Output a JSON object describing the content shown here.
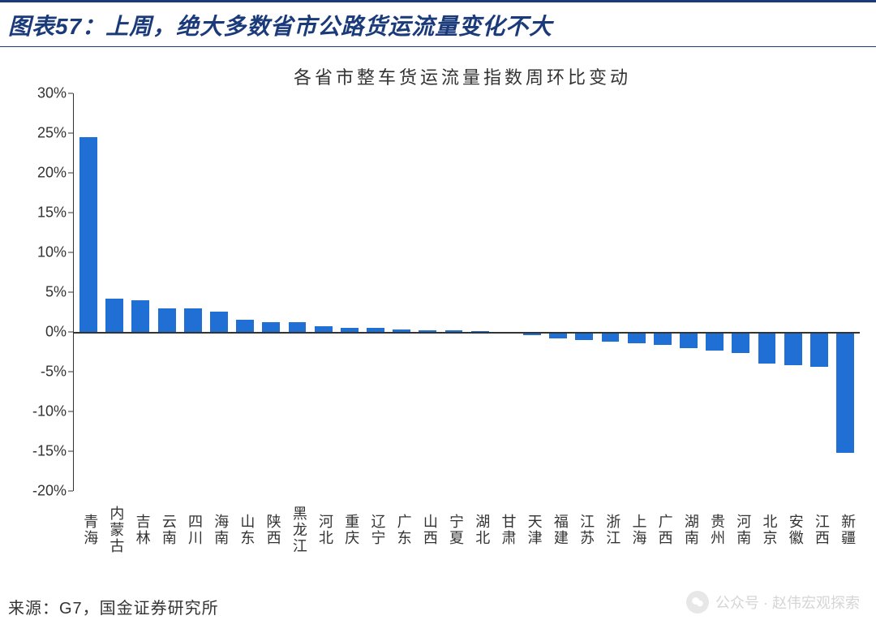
{
  "header": {
    "title": "图表57：上周，绝大多数省市公路货运流量变化不大"
  },
  "chart": {
    "type": "bar",
    "title": "各省市整车货运流量指数周环比变动",
    "title_fontsize": 22,
    "categories": [
      "青海",
      "内蒙古",
      "吉林",
      "云南",
      "四川",
      "海南",
      "山东",
      "陕西",
      "黑龙江",
      "河北",
      "重庆",
      "辽宁",
      "广东",
      "山西",
      "宁夏",
      "湖北",
      "甘肃",
      "天津",
      "福建",
      "江苏",
      "浙江",
      "上海",
      "广西",
      "湖南",
      "贵州",
      "河南",
      "北京",
      "安徽",
      "江西",
      "新疆"
    ],
    "values": [
      24.5,
      4.2,
      4.0,
      3.0,
      3.0,
      2.6,
      1.5,
      1.2,
      1.2,
      0.7,
      0.5,
      0.5,
      0.3,
      0.2,
      0.2,
      0.1,
      -0.2,
      -0.4,
      -0.8,
      -1.0,
      -1.2,
      -1.4,
      -1.6,
      -2.0,
      -2.3,
      -2.7,
      -4.0,
      -4.2,
      -4.4,
      -15.2
    ],
    "bar_color": "#1f6fd4",
    "ylim": [
      -20,
      30
    ],
    "ytick_step": 5,
    "y_suffix": "%",
    "axis_color": "#333333",
    "background_color": "#ffffff",
    "label_fontsize": 18,
    "bar_width": 0.68
  },
  "footer": {
    "source": "来源：G7，国金证券研究所"
  },
  "watermark": {
    "text": "公众号 · 赵伟宏观探索"
  }
}
